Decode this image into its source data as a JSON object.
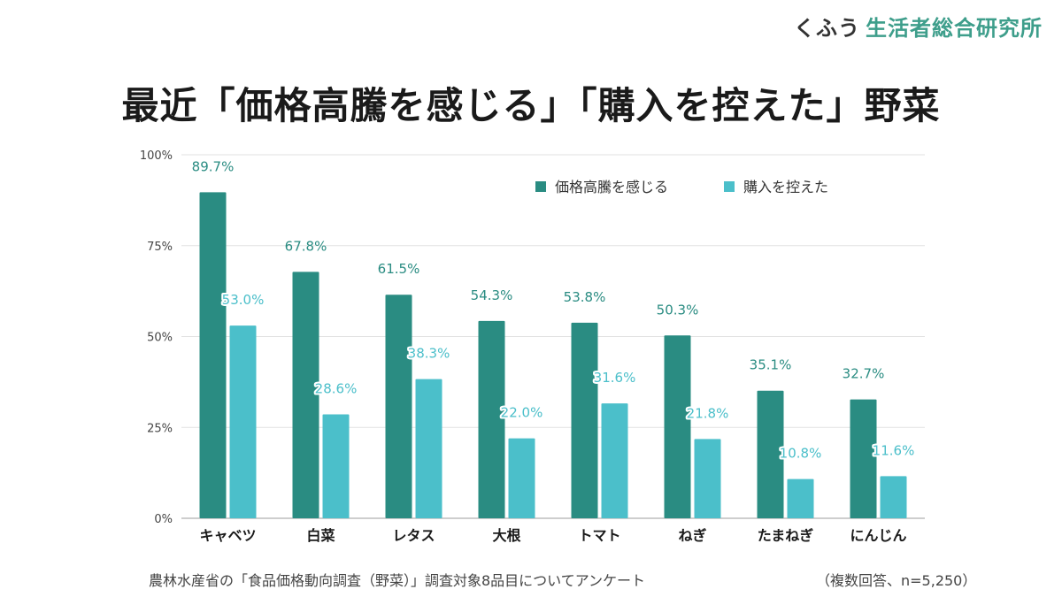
{
  "brand": {
    "name": "くふう",
    "sub": "生活者総合研究所"
  },
  "title": "最近「価格高騰を感じる」「購入を控えた」野菜",
  "footnote": {
    "source": "農林水産省の「食品価格動向調査（野菜）」調査対象8品目についてアンケート",
    "note": "（複数回答、n=5,250）"
  },
  "chart_data": {
    "type": "bar",
    "categories": [
      "キャベツ",
      "白菜",
      "レタス",
      "大根",
      "トマト",
      "ねぎ",
      "たまねぎ",
      "にんじん"
    ],
    "series": [
      {
        "name": "価格高騰を感じる",
        "color": "#2a8c82",
        "values": [
          89.7,
          67.8,
          61.5,
          54.3,
          53.8,
          50.3,
          35.1,
          32.7
        ]
      },
      {
        "name": "購入を控えた",
        "color": "#4bbfca",
        "values": [
          53.0,
          28.6,
          38.3,
          22.0,
          31.6,
          21.8,
          10.8,
          11.6
        ]
      }
    ],
    "ylim": [
      0,
      100
    ],
    "yticks": [
      0,
      25,
      50,
      75,
      100
    ],
    "ytick_labels": [
      "0%",
      "25%",
      "50%",
      "75%",
      "100%"
    ],
    "data_labels": true,
    "value_suffix": "%",
    "grid": true,
    "legend_position": "top-right"
  }
}
